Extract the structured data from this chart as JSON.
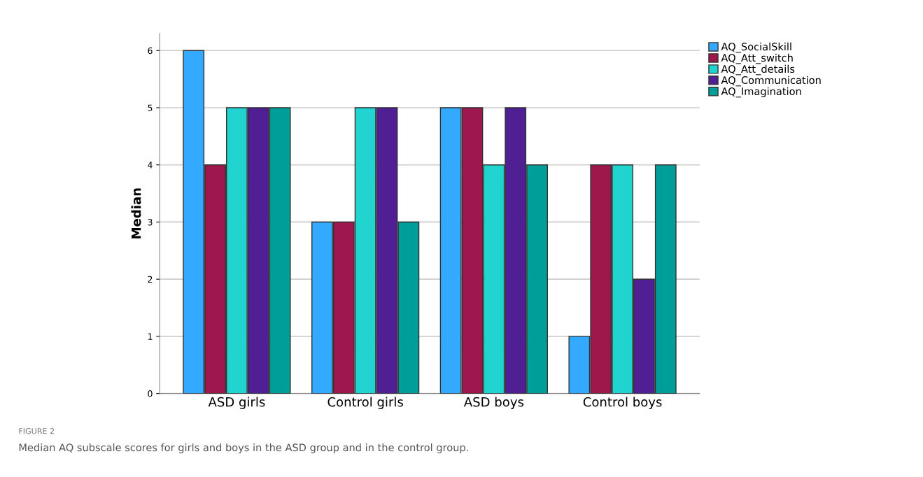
{
  "chart_data": {
    "type": "bar",
    "ylabel": "Median",
    "categories": [
      "ASD girls",
      "Control girls",
      "ASD boys",
      "Control boys"
    ],
    "series": [
      {
        "name": "AQ_SocialSkill",
        "color": "#33aaff",
        "values": [
          6,
          3,
          5,
          1
        ]
      },
      {
        "name": "AQ_Att_switch",
        "color": "#9e174c",
        "values": [
          4,
          3,
          5,
          4
        ]
      },
      {
        "name": "AQ_Att_details",
        "color": "#22d4d0",
        "values": [
          5,
          5,
          4,
          4
        ]
      },
      {
        "name": "AQ_Communication",
        "color": "#511f94",
        "values": [
          5,
          5,
          5,
          2
        ]
      },
      {
        "name": "AQ_Imagination",
        "color": "#009e99",
        "values": [
          5,
          3,
          4,
          4
        ]
      }
    ],
    "ylim": [
      0,
      6.3
    ],
    "yticks": [
      0,
      1,
      2,
      3,
      4,
      5,
      6
    ],
    "grid": "y",
    "legend": "top right",
    "annotations": [
      "FIGURE 2",
      "Median AQ subscale scores for girls and boys in the ASD group and in the control group."
    ]
  }
}
